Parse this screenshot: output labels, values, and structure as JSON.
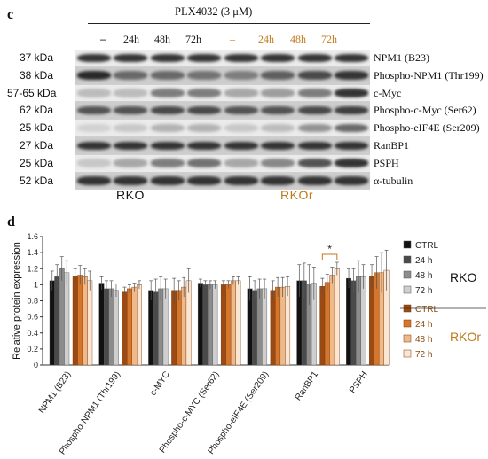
{
  "panel_c": {
    "letter": "c",
    "treatment": "PLX4032 (3 μM)",
    "lanes": [
      {
        "label": "–",
        "group": "RKO"
      },
      {
        "label": "24h",
        "group": "RKO"
      },
      {
        "label": "48h",
        "group": "RKO"
      },
      {
        "label": "72h",
        "group": "RKO"
      },
      {
        "label": "–",
        "group": "RKOr"
      },
      {
        "label": "24h",
        "group": "RKOr"
      },
      {
        "label": "48h",
        "group": "RKOr"
      },
      {
        "label": "72h",
        "group": "RKOr"
      }
    ],
    "blots": [
      {
        "kda": "37 kDa",
        "protein": "NPM1 (B23)",
        "intensity": [
          0.85,
          0.85,
          0.85,
          0.85,
          0.85,
          0.85,
          0.85,
          0.85
        ]
      },
      {
        "kda": "38 kDa",
        "protein": "Phospho-NPM1 (Thr199)",
        "intensity": [
          0.9,
          0.6,
          0.6,
          0.55,
          0.5,
          0.65,
          0.75,
          0.85
        ]
      },
      {
        "kda": "57-65 kDa",
        "protein": "c-Myc",
        "intensity": [
          0.2,
          0.2,
          0.5,
          0.5,
          0.3,
          0.35,
          0.5,
          0.85
        ]
      },
      {
        "kda": "62 kDa",
        "protein": "Phospho-c-Myc (Ser62)",
        "intensity": [
          0.7,
          0.7,
          0.75,
          0.75,
          0.7,
          0.7,
          0.75,
          0.8
        ]
      },
      {
        "kda": "25 kDa",
        "protein": "Phospho-eIF4E (Ser209)",
        "intensity": [
          0.1,
          0.15,
          0.25,
          0.25,
          0.15,
          0.2,
          0.4,
          0.6
        ]
      },
      {
        "kda": "27 kDa",
        "protein": "RanBP1",
        "intensity": [
          0.85,
          0.85,
          0.85,
          0.85,
          0.85,
          0.85,
          0.85,
          0.85
        ]
      },
      {
        "kda": "25 kDa",
        "protein": "PSPH",
        "intensity": [
          0.15,
          0.3,
          0.5,
          0.55,
          0.3,
          0.45,
          0.7,
          0.85
        ]
      },
      {
        "kda": "52 kDa",
        "protein": "α-tubulin",
        "intensity": [
          0.85,
          0.85,
          0.85,
          0.85,
          0.85,
          0.85,
          0.85,
          0.85
        ]
      }
    ],
    "group_labels": [
      "RKO",
      "RKOr"
    ]
  },
  "panel_d": {
    "letter": "d",
    "chart_data": {
      "type": "bar",
      "ylabel": "Relative protein expression",
      "ylim": [
        0,
        1.6
      ],
      "yticks": [
        "0",
        "0.2",
        "0.4",
        "0.6",
        "0.8",
        "1",
        "1.2",
        "1.4",
        "1.6"
      ],
      "categories": [
        "NPM1 (B23)",
        "Phospho-NPM1 (Thr199)",
        "c-MYC",
        "Phospho-c-MYC (Ser62)",
        "Phospho-eIF4E (Ser209)",
        "RanBP1",
        "PSPH"
      ],
      "series": [
        {
          "name": "CTRL",
          "group": "RKO",
          "color": "#111111",
          "values": [
            1.05,
            1.02,
            0.93,
            1.02,
            0.95,
            1.05,
            1.08
          ],
          "errors": [
            0.12,
            0.08,
            0.12,
            0.05,
            0.15,
            0.2,
            0.12
          ]
        },
        {
          "name": "24 h",
          "group": "RKO",
          "color": "#4a4a4a",
          "values": [
            1.1,
            0.95,
            0.92,
            1.0,
            0.93,
            1.05,
            1.05
          ],
          "errors": [
            0.15,
            0.1,
            0.15,
            0.05,
            0.12,
            0.22,
            0.15
          ]
        },
        {
          "name": "48 h",
          "group": "RKO",
          "color": "#8c8c8c",
          "values": [
            1.2,
            0.95,
            0.95,
            1.0,
            0.95,
            1.0,
            1.1
          ],
          "errors": [
            0.15,
            0.1,
            0.15,
            0.05,
            0.12,
            0.25,
            0.2
          ]
        },
        {
          "name": "72 h",
          "group": "RKO",
          "color": "#cfcfcf",
          "values": [
            1.15,
            0.93,
            0.95,
            1.0,
            0.95,
            1.02,
            1.1
          ],
          "errors": [
            0.15,
            0.08,
            0.12,
            0.05,
            0.12,
            0.2,
            0.15
          ]
        },
        {
          "name": "CTRL",
          "group": "RKOr",
          "color": "#9a4a12",
          "values": [
            1.1,
            0.92,
            0.93,
            1.0,
            0.93,
            0.98,
            1.1
          ],
          "errors": [
            0.1,
            0.05,
            0.15,
            0.05,
            0.12,
            0.1,
            0.15
          ]
        },
        {
          "name": "24 h",
          "group": "RKOr",
          "color": "#d4762c",
          "values": [
            1.12,
            0.95,
            0.93,
            1.0,
            0.97,
            1.03,
            1.15
          ],
          "errors": [
            0.12,
            0.05,
            0.12,
            0.05,
            0.12,
            0.1,
            0.2
          ]
        },
        {
          "name": "48 h",
          "group": "RKOr",
          "color": "#f0b98a",
          "values": [
            1.1,
            0.97,
            0.97,
            1.05,
            0.97,
            1.12,
            1.15
          ],
          "errors": [
            0.1,
            0.05,
            0.12,
            0.05,
            0.12,
            0.1,
            0.25
          ]
        },
        {
          "name": "72 h",
          "group": "RKOr",
          "color": "#fbe6d3",
          "values": [
            1.05,
            1.0,
            1.05,
            1.05,
            0.98,
            1.2,
            1.18
          ],
          "errors": [
            0.12,
            0.05,
            0.15,
            0.05,
            0.12,
            0.08,
            0.25
          ]
        }
      ],
      "annotation": {
        "text": "*",
        "category": "RanBP1"
      },
      "legend": {
        "position": "right",
        "group_labels": [
          "RKO",
          "RKOr"
        ]
      }
    }
  }
}
